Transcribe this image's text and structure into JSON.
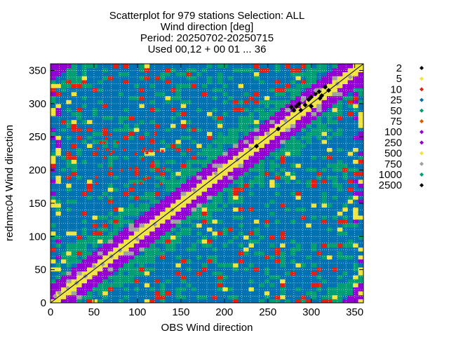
{
  "chart_data": {
    "type": "scatter",
    "title_lines": [
      "Scatterplot for  979 stations Selection: ALL",
      "Wind direction [deg]",
      "Period: 20250702-20250715",
      "Used 00,12 + 00 01 ... 36"
    ],
    "xlabel": "OBS Wind direction",
    "ylabel": "rednmc04 Wind direction",
    "xlim": [
      0,
      360
    ],
    "ylim": [
      0,
      360
    ],
    "xticks": [
      0,
      50,
      100,
      150,
      200,
      250,
      300,
      350
    ],
    "yticks": [
      0,
      50,
      100,
      150,
      200,
      250,
      300,
      350
    ],
    "diagonal": true,
    "legend_position": "right",
    "legend": [
      {
        "label": "2",
        "color": "#000000"
      },
      {
        "label": "5",
        "color": "#f0e442"
      },
      {
        "label": "10",
        "color": "#e51e10"
      },
      {
        "label": "25",
        "color": "#0072b2"
      },
      {
        "label": "50",
        "color": "#009e73"
      },
      {
        "label": "75",
        "color": "#d55e00"
      },
      {
        "label": "100",
        "color": "#9400d3"
      },
      {
        "label": "250",
        "color": "#9400d3"
      },
      {
        "label": "500",
        "color": "#f0e442"
      },
      {
        "label": "750",
        "color": "#a0a0a0"
      },
      {
        "label": "1000",
        "color": "#009e73"
      },
      {
        "label": "2500",
        "color": "#000000"
      }
    ],
    "series": [
      {
        "name": "2500",
        "color": "#000000",
        "points": [
          [
            277,
            295
          ],
          [
            280,
            290
          ],
          [
            286,
            300
          ],
          [
            290,
            305
          ],
          [
            293,
            298
          ],
          [
            300,
            310
          ],
          [
            305,
            315
          ],
          [
            309,
            318
          ],
          [
            312,
            312
          ],
          [
            316,
            325
          ],
          [
            283,
            296
          ],
          [
            297,
            306
          ],
          [
            237,
            236
          ],
          [
            262,
            262
          ],
          [
            288,
            290
          ],
          [
            310,
            308
          ],
          [
            300,
            296
          ],
          [
            320,
            320
          ]
        ]
      },
      {
        "name": "750",
        "color": "#a0a0a0",
        "points": [
          [
            5,
            10
          ],
          [
            10,
            15
          ],
          [
            20,
            22
          ],
          [
            40,
            40
          ],
          [
            60,
            58
          ],
          [
            80,
            79
          ],
          [
            100,
            96
          ],
          [
            120,
            118
          ],
          [
            140,
            140
          ],
          [
            165,
            170
          ],
          [
            190,
            195
          ],
          [
            215,
            216
          ],
          [
            230,
            232
          ],
          [
            250,
            255
          ],
          [
            270,
            275
          ],
          [
            290,
            305
          ],
          [
            305,
            320
          ],
          [
            330,
            330
          ],
          [
            345,
            340
          ],
          [
            50,
            55
          ],
          [
            30,
            30
          ],
          [
            70,
            70
          ]
        ]
      }
    ]
  }
}
